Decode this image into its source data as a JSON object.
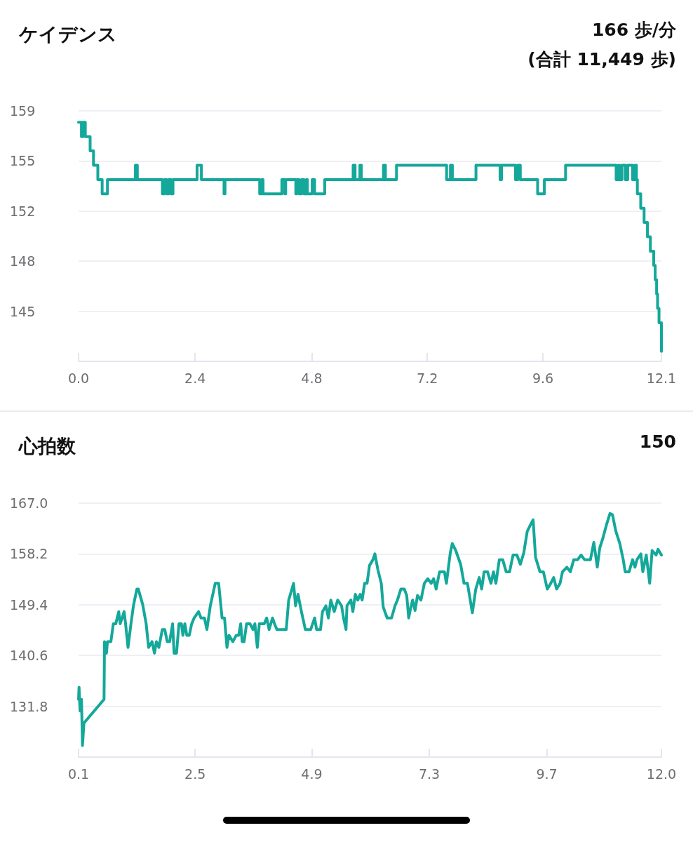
{
  "chart_data": [
    {
      "type": "step",
      "title": "ケイデンス",
      "annotations": [
        "166 歩/分",
        "(合計 11,449 歩)"
      ],
      "grid": "y",
      "marker": "none",
      "line_style": "solid",
      "xlim": [
        0,
        12.1
      ],
      "ylim": [
        141.3,
        158.8
      ],
      "xticks": [
        {
          "value": 0,
          "label": "0.0"
        },
        {
          "value": 2.42,
          "label": "2.4"
        },
        {
          "value": 4.84,
          "label": "4.8"
        },
        {
          "value": 7.24,
          "label": "7.2"
        },
        {
          "value": 9.64,
          "label": "9.6"
        },
        {
          "value": 12.1,
          "label": "12.1"
        }
      ],
      "yticks": [
        {
          "value": 144.8,
          "label": "145"
        },
        {
          "value": 148.3,
          "label": "148"
        },
        {
          "value": 151.8,
          "label": "152"
        },
        {
          "value": 155.3,
          "label": "155"
        },
        {
          "value": 158.8,
          "label": "159"
        }
      ],
      "x": [
        0,
        0.06,
        0.09,
        0.14,
        0.24,
        0.31,
        0.4,
        0.49,
        0.6,
        1.18,
        1.22,
        1.74,
        1.78,
        1.83,
        1.87,
        1.92,
        1.96,
        2.46,
        2.55,
        3.02,
        3.04,
        3.76,
        3.8,
        3.83,
        4.22,
        4.28,
        4.3,
        4.51,
        4.53,
        4.58,
        4.63,
        4.68,
        4.73,
        4.75,
        4.85,
        4.9,
        5.11,
        5.7,
        5.74,
        5.84,
        5.87,
        6.33,
        6.37,
        6.6,
        7.64,
        7.72,
        7.76,
        8.25,
        8.75,
        8.78,
        9.07,
        9.12,
        9.17,
        9.53,
        9.67,
        10.11,
        11.16,
        11.21,
        11.23,
        11.28,
        11.35,
        11.4,
        11.5,
        11.55,
        11.58,
        11.6,
        11.67,
        11.74,
        11.81,
        11.87,
        11.94,
        11.97,
        12,
        12.02,
        12.05,
        12.1
      ],
      "series": [
        {
          "color": "#14a89a",
          "values": [
            158,
            157,
            158,
            157,
            156,
            155,
            154,
            153,
            154,
            155,
            154,
            153,
            154,
            153,
            154,
            153,
            154,
            155,
            154,
            153,
            154,
            153,
            154,
            153,
            154,
            153,
            154,
            153,
            154,
            153,
            154,
            153,
            154,
            153,
            154,
            153,
            154,
            155,
            154,
            155,
            154,
            155,
            154,
            155,
            154,
            155,
            154,
            155,
            154,
            155,
            154,
            155,
            154,
            153,
            154,
            155,
            154,
            155,
            154,
            155,
            154,
            155,
            154,
            155,
            154,
            153,
            152,
            151,
            150,
            149,
            148,
            147,
            146,
            145,
            144,
            142
          ]
        }
      ]
    },
    {
      "type": "line",
      "title": "心拍数",
      "annotations": [
        "150"
      ],
      "grid": "y",
      "marker": "none",
      "line_style": "solid",
      "xlim": [
        0.1,
        12
      ],
      "ylim": [
        123,
        167
      ],
      "xticks": [
        {
          "value": 0.1,
          "label": "0.1"
        },
        {
          "value": 2.48,
          "label": "2.5"
        },
        {
          "value": 4.86,
          "label": "4.9"
        },
        {
          "value": 7.26,
          "label": "7.3"
        },
        {
          "value": 9.66,
          "label": "9.7"
        },
        {
          "value": 12,
          "label": "12.0"
        }
      ],
      "yticks": [
        {
          "value": 131.8,
          "label": "131.8"
        },
        {
          "value": 140.6,
          "label": "140.6"
        },
        {
          "value": 149.4,
          "label": "149.4"
        },
        {
          "value": 158.2,
          "label": "158.2"
        },
        {
          "value": 167,
          "label": "167.0"
        }
      ],
      "x": [
        0.1,
        0.11,
        0.13,
        0.16,
        0.18,
        0.21,
        0.62,
        0.63,
        0.67,
        0.69,
        0.76,
        0.81,
        0.86,
        0.92,
        0.95,
        0.99,
        1.03,
        1.06,
        1.11,
        1.17,
        1.22,
        1.29,
        1.32,
        1.41,
        1.48,
        1.53,
        1.6,
        1.65,
        1.69,
        1.74,
        1.81,
        1.86,
        1.91,
        1.96,
        2.02,
        2.05,
        2.1,
        2.15,
        2.2,
        2.23,
        2.27,
        2.31,
        2.36,
        2.41,
        2.46,
        2.55,
        2.6,
        2.67,
        2.72,
        2.79,
        2.89,
        2.96,
        3.03,
        3.08,
        3.13,
        3.17,
        3.25,
        3.32,
        3.37,
        3.41,
        3.44,
        3.48,
        3.53,
        3.6,
        3.66,
        3.7,
        3.75,
        3.79,
        3.89,
        3.94,
        3.99,
        4.06,
        4.1,
        4.15,
        4.34,
        4.39,
        4.49,
        4.53,
        4.58,
        4.65,
        4.73,
        4.84,
        4.92,
        4.96,
        5.04,
        5.08,
        5.15,
        5.2,
        5.25,
        5.32,
        5.39,
        5.47,
        5.51,
        5.56,
        5.58,
        5.66,
        5.7,
        5.75,
        5.8,
        5.85,
        5.89,
        5.94,
        5.99,
        6.04,
        6.11,
        6.15,
        6.21,
        6.28,
        6.32,
        6.4,
        6.49,
        6.56,
        6.61,
        6.68,
        6.75,
        6.8,
        6.84,
        6.87,
        6.92,
        6.97,
        7.02,
        7.09,
        7.16,
        7.23,
        7.3,
        7.35,
        7.4,
        7.47,
        7.57,
        7.61,
        7.69,
        7.73,
        7.8,
        7.9,
        7.97,
        8.04,
        8.14,
        8.21,
        8.28,
        8.33,
        8.38,
        8.45,
        8.52,
        8.57,
        8.62,
        8.69,
        8.76,
        8.83,
        8.9,
        8.97,
        9.05,
        9.12,
        9.19,
        9.26,
        9.33,
        9.38,
        9.43,
        9.52,
        9.59,
        9.67,
        9.74,
        9.8,
        9.86,
        9.93,
        9.98,
        10.07,
        10.14,
        10.21,
        10.29,
        10.36,
        10.43,
        10.55,
        10.62,
        10.69,
        10.74,
        10.81,
        10.88,
        10.95,
        11,
        11.07,
        11.15,
        11.22,
        11.26,
        11.34,
        11.41,
        11.46,
        11.5,
        11.58,
        11.62,
        11.69,
        11.76,
        11.81,
        11.89,
        11.93,
        12
      ],
      "series": [
        {
          "color": "#14a89a",
          "values": [
            133,
            135.1,
            131,
            133,
            125,
            128.9,
            133,
            143,
            141,
            143,
            143,
            146.1,
            146.1,
            148.2,
            146.1,
            147.1,
            148.2,
            146.1,
            142,
            146.1,
            149.2,
            152.1,
            152.1,
            149.4,
            146.1,
            142,
            143,
            141,
            143,
            142,
            145.1,
            145.1,
            143,
            143,
            146.1,
            141,
            141,
            146.1,
            146.1,
            144.1,
            146.1,
            144.1,
            144.1,
            146.1,
            147.1,
            148.2,
            147.1,
            147.1,
            145.1,
            149.2,
            153.1,
            153.1,
            147.1,
            147.1,
            142,
            144.1,
            143,
            144.1,
            144.1,
            146.1,
            143,
            143,
            146.1,
            146.1,
            145.1,
            146.1,
            142,
            146.1,
            146.1,
            147.1,
            145.1,
            147.1,
            146.1,
            145.1,
            145.1,
            150.2,
            153.1,
            149.2,
            151.2,
            148.2,
            145.1,
            145.1,
            147.1,
            145.1,
            145.1,
            148.2,
            149.2,
            147.1,
            150.2,
            148.2,
            150.2,
            149.2,
            147.1,
            145.1,
            149.2,
            150.2,
            148.2,
            151.2,
            150.2,
            151.2,
            150.2,
            153.1,
            153.1,
            156.2,
            157.2,
            158.2,
            155.5,
            153.1,
            149,
            147.1,
            147.1,
            149.2,
            150.2,
            152.1,
            152.1,
            151,
            147.1,
            148.4,
            150.2,
            148.4,
            151,
            150.2,
            153.1,
            153.9,
            153.1,
            153.9,
            152.1,
            155.1,
            155.1,
            153.1,
            158.4,
            160,
            158.8,
            156.4,
            153.1,
            153.1,
            148,
            152.1,
            154.1,
            152.1,
            155.1,
            155.1,
            153.1,
            155.1,
            153.1,
            157.2,
            157.2,
            155.1,
            155.1,
            158,
            158,
            156.4,
            158.4,
            162.1,
            163.3,
            164.1,
            157.6,
            155.1,
            155.1,
            152.1,
            153.1,
            154.1,
            152.1,
            153.1,
            155.1,
            155.9,
            155.1,
            157.2,
            157.2,
            158,
            157.2,
            157.2,
            160.2,
            155.9,
            159.2,
            161.1,
            163.3,
            165.2,
            165,
            162.1,
            160,
            157.2,
            155.1,
            155.1,
            157.2,
            155.9,
            157.2,
            158.2,
            155.1,
            158,
            153.1,
            158.8,
            158,
            159,
            158
          ]
        }
      ]
    }
  ]
}
